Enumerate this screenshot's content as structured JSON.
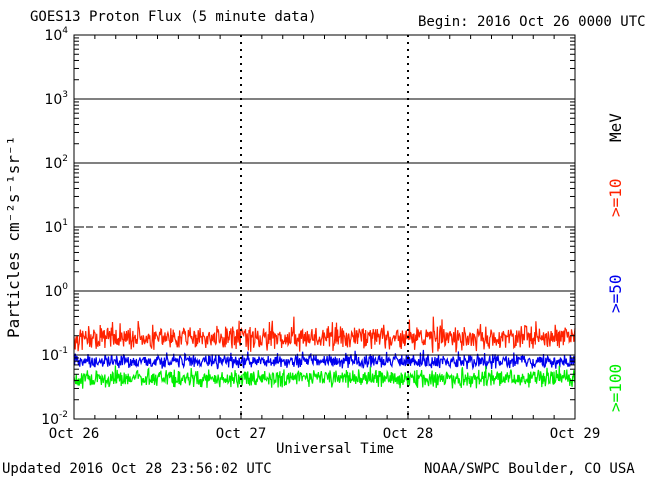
{
  "header": {
    "title": "GOES13 Proton Flux (5 minute data)",
    "begin": "Begin: 2016 Oct 26 0000 UTC"
  },
  "footer": {
    "updated": "Updated 2016 Oct 28 23:56:02 UTC",
    "credit": "NOAA/SWPC Boulder, CO USA"
  },
  "chart_data": {
    "type": "line",
    "title": "GOES13 Proton Flux (5 minute data)",
    "xlabel": "Universal Time",
    "ylabel": "Particles cm⁻²s⁻¹sr⁻¹",
    "yscale": "log",
    "ylim": [
      0.01,
      10000
    ],
    "y_ticks": [
      {
        "exp": "4"
      },
      {
        "exp": "3"
      },
      {
        "exp": "2"
      },
      {
        "exp": "1"
      },
      {
        "exp": "0"
      },
      {
        "exp": "-1"
      },
      {
        "exp": "-2"
      }
    ],
    "x_ticks": [
      "Oct 26",
      "Oct 27",
      "Oct 28",
      "Oct 29"
    ],
    "xlim": [
      "2016-10-26",
      "2016-10-29"
    ],
    "grid": true,
    "threshold_lines": [
      1000,
      100,
      10,
      1,
      0.1
    ],
    "unit_label": "MeV",
    "series": [
      {
        "name": ">=10",
        "color": "#ff2200",
        "baseline": 0.17,
        "spread": 0.12
      },
      {
        "name": ">=50",
        "color": "#0000ee",
        "baseline": 0.075,
        "spread": 0.03
      },
      {
        "name": ">=100",
        "color": "#00ee00",
        "baseline": 0.04,
        "spread": 0.02
      }
    ]
  }
}
